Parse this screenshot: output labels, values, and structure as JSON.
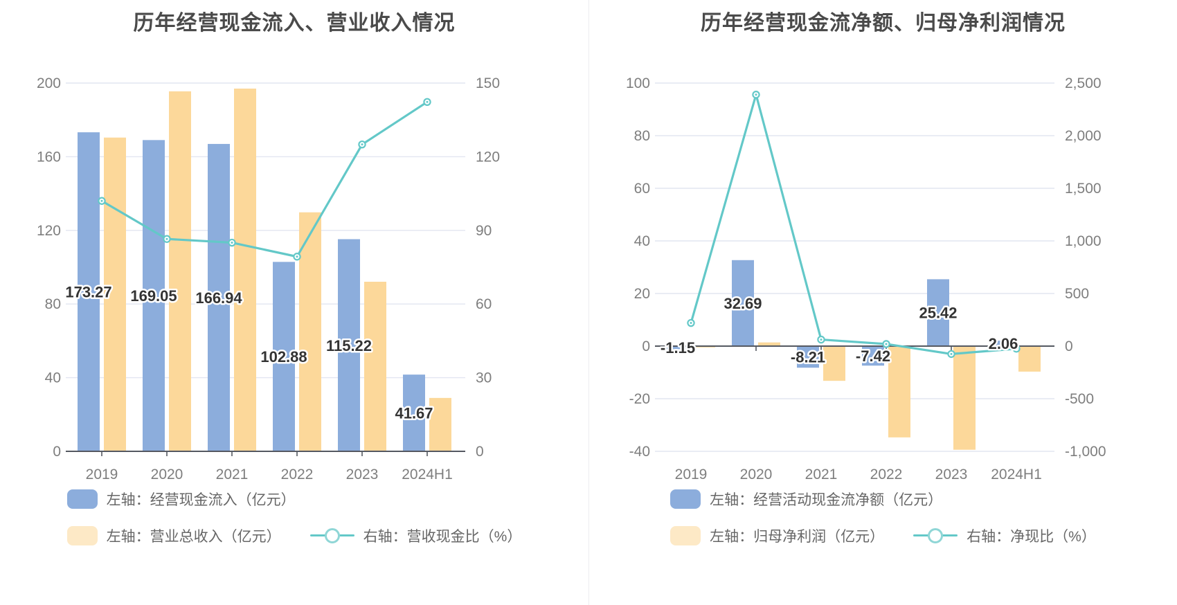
{
  "chart_data": [
    {
      "type": "bar",
      "title": "历年经营现金流入、营业收入情况",
      "categories": [
        "2019",
        "2020",
        "2021",
        "2022",
        "2023",
        "2024H1"
      ],
      "series": [
        {
          "name": "左轴：经营现金流入（亿元）",
          "type": "bar",
          "axis": "left",
          "color": "#8CADDC",
          "values": [
            173.27,
            169.05,
            166.94,
            102.88,
            115.22,
            41.67
          ],
          "labels": [
            "173.27",
            "169.05",
            "166.94",
            "102.88",
            "115.22",
            "41.67"
          ]
        },
        {
          "name": "左轴：营业总收入（亿元）",
          "type": "bar",
          "axis": "left",
          "color": "#FCD89A",
          "legend_color": "#FDE9C6",
          "values": [
            170.4,
            195.5,
            197.0,
            129.8,
            92.1,
            29.0
          ]
        },
        {
          "name": "右轴：营收现金比（%）",
          "type": "line",
          "axis": "right",
          "color": "#63C8C8",
          "values": [
            102,
            86.5,
            85,
            79.3,
            125,
            142.3
          ]
        }
      ],
      "left_axis": {
        "min": 0,
        "max": 200,
        "ticks": [
          "0",
          "40",
          "80",
          "120",
          "160",
          "200"
        ]
      },
      "right_axis": {
        "min": 0,
        "max": 150,
        "ticks": [
          "0",
          "30",
          "60",
          "90",
          "120",
          "150"
        ]
      },
      "grid": true,
      "legend_position": "bottom"
    },
    {
      "type": "bar",
      "title": "历年经营现金流净额、归母净利润情况",
      "categories": [
        "2019",
        "2020",
        "2021",
        "2022",
        "2023",
        "2024H1"
      ],
      "series": [
        {
          "name": "左轴：经营活动现金流净额（亿元）",
          "type": "bar",
          "axis": "left",
          "color": "#8CADDC",
          "values": [
            -1.15,
            32.69,
            -8.21,
            -7.42,
            25.42,
            2.06
          ],
          "labels": [
            "-1.15",
            "32.69",
            "-8.21",
            "-7.42",
            "25.42",
            "2.06"
          ]
        },
        {
          "name": "左轴：归母净利润（亿元）",
          "type": "bar",
          "axis": "left",
          "color": "#FCD89A",
          "legend_color": "#FDE9C6",
          "values": [
            -0.5,
            1.4,
            -13.2,
            -34.7,
            -39.4,
            -9.7
          ]
        },
        {
          "name": "右轴：净现比（%）",
          "type": "line",
          "axis": "right",
          "color": "#63C8C8",
          "values": [
            220,
            2390,
            62,
            20,
            -75,
            -25
          ]
        }
      ],
      "left_axis": {
        "min": -40,
        "max": 100,
        "ticks": [
          "-40",
          "-20",
          "0",
          "20",
          "40",
          "60",
          "80",
          "100"
        ]
      },
      "right_axis": {
        "min": -1000,
        "max": 2500,
        "ticks": [
          "-1,000",
          "-500",
          "0",
          "500",
          "1,000",
          "1,500",
          "2,000",
          "2,500"
        ]
      },
      "grid": true,
      "legend_position": "bottom"
    }
  ],
  "colors": {
    "bar_blue": "#8CADDC",
    "bar_orange": "#FCD89A",
    "line_teal": "#63C8C8",
    "gridline": "#E2E6F1",
    "axis_line": "#545861",
    "tick_text": "#7E7E7E",
    "title_text": "#4A4A4A",
    "legend_text": "#666666"
  }
}
